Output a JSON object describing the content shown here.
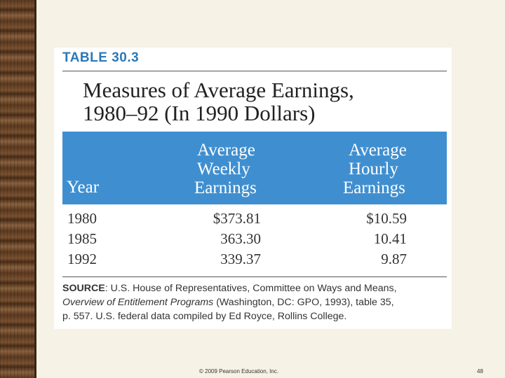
{
  "table": {
    "label": "TABLE 30.3",
    "title_line1": "Measures of Average Earnings,",
    "title_line2": "1980–92 (In 1990 Dollars)",
    "headers": {
      "year": "Year",
      "weekly": [
        "Average",
        "Weekly",
        "Earnings"
      ],
      "hourly": [
        "Average",
        "Hourly",
        "Earnings"
      ]
    },
    "rows": [
      {
        "year": "1980",
        "weekly": "$373.81",
        "hourly": "$10.59"
      },
      {
        "year": "1985",
        "weekly": "363.30",
        "hourly": "10.41"
      },
      {
        "year": "1992",
        "weekly": "339.37",
        "hourly": "9.87"
      }
    ],
    "source": {
      "lead": "SOURCE",
      "text1": ": U.S. House of Representatives, Committee on Ways and Means,",
      "italic": "Overview of Entitlement Programs",
      "text2": " (Washington, DC: GPO, 1993), table 35,",
      "text3": "p. 557. U.S. federal data compiled by Ed Royce, Rollins College."
    }
  },
  "footer": {
    "copyright": "© 2009 Pearson Education, Inc.",
    "page_number": "48"
  },
  "colors": {
    "header_band": "#3f8fd0",
    "table_label": "#2b78b8"
  }
}
